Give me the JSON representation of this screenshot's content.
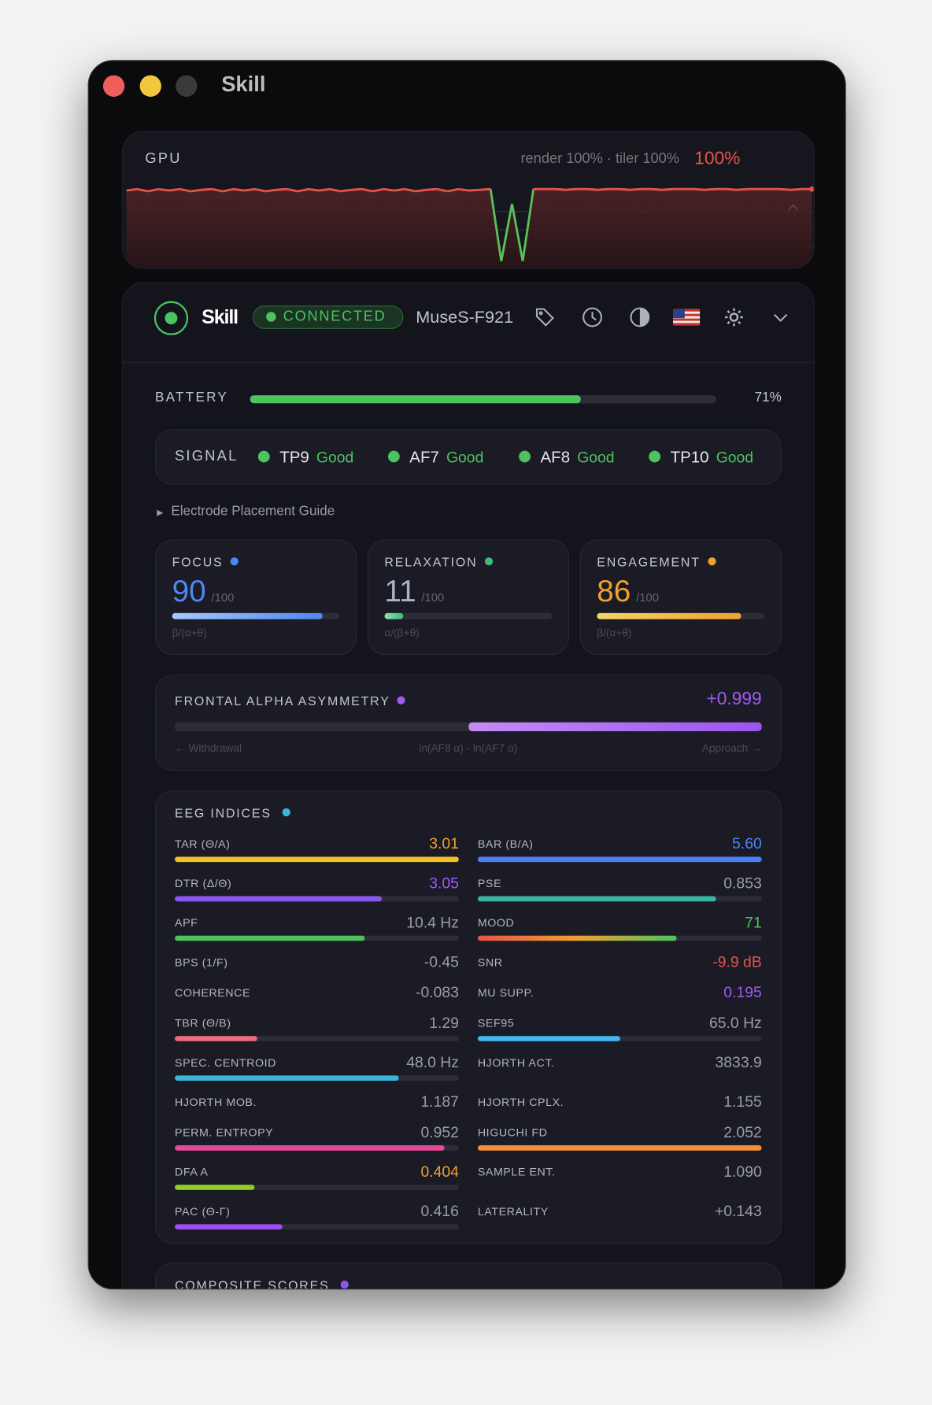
{
  "window": {
    "title": "Skill",
    "traffic_lights": [
      "#ee5e5b",
      "#f3c63f",
      "#3a3a3c"
    ]
  },
  "gpu": {
    "label": "GPU",
    "detail": "render 100% · tiler 100%",
    "value": "100%",
    "collapse_icon": "chevron-up-icon",
    "history": [
      98,
      100,
      97,
      100,
      98,
      100,
      97,
      99,
      100,
      97,
      100,
      98,
      100,
      97,
      99,
      100,
      97,
      100,
      98,
      100,
      97,
      99,
      100,
      97,
      100,
      98,
      100,
      97,
      99,
      100,
      97,
      100,
      98,
      99,
      100,
      2,
      80,
      2,
      100,
      100,
      100,
      99,
      100,
      100,
      99,
      100,
      100,
      99,
      100,
      100,
      99,
      100,
      100,
      100,
      99,
      100,
      100,
      99,
      100,
      100,
      100,
      100,
      99,
      100,
      100
    ]
  },
  "header": {
    "brand": "Skill",
    "status": "CONNECTED",
    "device": "MuseS-F921",
    "icons": [
      "tag-icon",
      "clock-icon",
      "contrast-icon",
      "us-flag-icon",
      "gear-icon",
      "chevron-down-icon"
    ]
  },
  "battery": {
    "label": "BATTERY",
    "percent": 71,
    "text": "71%"
  },
  "signal": {
    "label": "SIGNAL",
    "channels": [
      {
        "name": "TP9",
        "quality": "Good"
      },
      {
        "name": "AF7",
        "quality": "Good"
      },
      {
        "name": "AF8",
        "quality": "Good"
      },
      {
        "name": "TP10",
        "quality": "Good"
      }
    ]
  },
  "guide": {
    "label": "Electrode Placement Guide"
  },
  "metrics": [
    {
      "label": "FOCUS",
      "value": "90",
      "denom": "/100",
      "formula": "β/(α+θ)",
      "color": "#4f86f0",
      "fraction": 0.9
    },
    {
      "label": "RELAXATION",
      "value": "11",
      "denom": "/100",
      "formula": "α/(β+θ)",
      "color": "#3dba78",
      "fraction": 0.11,
      "value_color": "#aab3c7"
    },
    {
      "label": "ENGAGEMENT",
      "value": "86",
      "denom": "/100",
      "formula": "β/(α+θ)",
      "color": "#f0a030",
      "fraction": 0.86
    }
  ],
  "faa": {
    "label": "FRONTAL ALPHA ASYMMETRY",
    "value": "+0.999",
    "fraction": 0.999,
    "left": "← Withdrawal",
    "center": "ln(AF8 α) - ln(AF7 α)",
    "right": "Approach →",
    "color": "#a259f0"
  },
  "eeg": {
    "label": "EEG INDICES",
    "rows": [
      [
        {
          "label": "TAR (Θ/A)",
          "value": "3.01",
          "vcolor": "#f0a030",
          "bar": 1.0,
          "bcolor": "#f2c020"
        },
        {
          "label": "BAR (B/A)",
          "value": "5.60",
          "vcolor": "#4f86f0",
          "bar": 1.0,
          "bcolor": "#4a80f5"
        }
      ],
      [
        {
          "label": "DTR (Δ/Θ)",
          "value": "3.05",
          "vcolor": "#9b5cf6",
          "bar": 0.73,
          "bcolor": "#8b55f0"
        },
        {
          "label": "PSE",
          "value": "0.853",
          "bar": 0.84,
          "bcolor": "#3ab3a0"
        }
      ],
      [
        {
          "label": "APF",
          "value": "10.4 Hz",
          "bar": 0.67,
          "bcolor": "#4cc35f"
        },
        {
          "label": "MOOD",
          "value": "71",
          "vcolor": "#4cc35f",
          "bar": 0.7,
          "bcolor": "mood"
        }
      ],
      [
        {
          "label": "BPS (1/F)",
          "value": "-0.45"
        },
        {
          "label": "SNR",
          "value": "-9.9 dB",
          "vcolor": "#e5534b"
        }
      ],
      [
        {
          "label": "COHERENCE",
          "value": "-0.083"
        },
        {
          "label": "MU SUPP.",
          "value": "0.195",
          "vcolor": "#a259f0"
        }
      ],
      [
        {
          "label": "TBR (Θ/B)",
          "value": "1.29",
          "bar": 0.29,
          "bcolor": "#ef6a7a"
        },
        {
          "label": "SEF95",
          "value": "65.0 Hz",
          "bar": 0.5,
          "bcolor": "#45b5f0"
        }
      ],
      [
        {
          "label": "SPEC. CENTROID",
          "value": "48.0 Hz",
          "bar": 0.79,
          "bcolor": "#3ab5d8"
        },
        {
          "label": "HJORTH ACT.",
          "value": "3833.9"
        }
      ],
      [
        {
          "label": "HJORTH MOB.",
          "value": "1.187"
        },
        {
          "label": "HJORTH CPLX.",
          "value": "1.155"
        }
      ],
      [
        {
          "label": "PERM. ENTROPY",
          "value": "0.952",
          "bar": 0.95,
          "bcolor": "#e5479a"
        },
        {
          "label": "HIGUCHI FD",
          "value": "2.052",
          "bar": 1.0,
          "bcolor": "#f28c35"
        }
      ],
      [
        {
          "label": "DFA A",
          "value": "0.404",
          "vcolor": "#f0a030",
          "bar": 0.28,
          "bcolor": "#8fd020"
        },
        {
          "label": "SAMPLE ENT.",
          "value": "1.090"
        }
      ],
      [
        {
          "label": "PAC (Θ-Γ)",
          "value": "0.416",
          "bar": 0.38,
          "bcolor": "#a04cf5"
        },
        {
          "label": "LATERALITY",
          "value": "+0.143"
        }
      ]
    ]
  },
  "composite": {
    "label": "COMPOSITE SCORES"
  }
}
